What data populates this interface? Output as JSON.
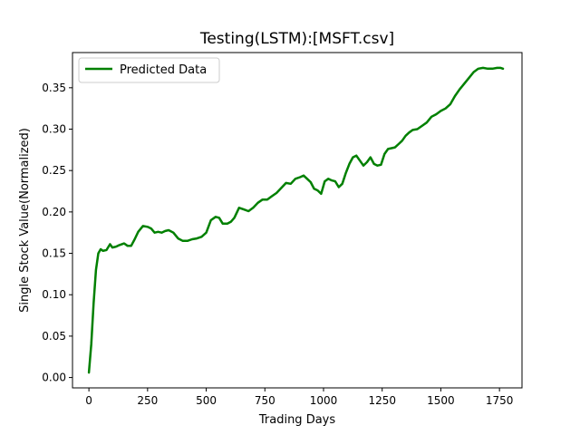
{
  "chart_data": {
    "type": "line",
    "title": "Testing(LSTM):[MSFT.csv]",
    "xlabel": "Trading Days",
    "ylabel": "Single Stock Value(Normalized)",
    "xlim": [
      -70,
      1846
    ],
    "ylim": [
      -0.0125,
      0.3925
    ],
    "xticks": [
      "0",
      "250",
      "500",
      "750",
      "1000",
      "1250",
      "1500",
      "1750"
    ],
    "xtick_values": [
      0,
      250,
      500,
      750,
      1000,
      1250,
      1500,
      1750
    ],
    "yticks": [
      "0.00",
      "0.05",
      "0.10",
      "0.15",
      "0.20",
      "0.25",
      "0.30",
      "0.35"
    ],
    "ytick_values": [
      0,
      0.05,
      0.1,
      0.15,
      0.2,
      0.25,
      0.3,
      0.35
    ],
    "grid": false,
    "legend_position": "top-left",
    "title_color": "#008000",
    "series": [
      {
        "name": "Predicted Data",
        "color": "#008000",
        "x": [
          0,
          10,
          20,
          30,
          40,
          50,
          60,
          75,
          90,
          100,
          115,
          130,
          150,
          165,
          180,
          195,
          210,
          230,
          250,
          265,
          280,
          295,
          310,
          325,
          340,
          360,
          380,
          400,
          420,
          440,
          460,
          480,
          500,
          520,
          540,
          555,
          570,
          590,
          605,
          620,
          640,
          660,
          680,
          700,
          720,
          740,
          760,
          780,
          800,
          820,
          840,
          860,
          880,
          900,
          915,
          930,
          945,
          960,
          975,
          990,
          1005,
          1020,
          1035,
          1050,
          1065,
          1080,
          1095,
          1110,
          1125,
          1140,
          1155,
          1170,
          1185,
          1200,
          1215,
          1230,
          1245,
          1260,
          1275,
          1290,
          1305,
          1320,
          1335,
          1350,
          1365,
          1380,
          1400,
          1420,
          1440,
          1460,
          1480,
          1500,
          1520,
          1540,
          1560,
          1580,
          1600,
          1620,
          1640,
          1660,
          1680,
          1700,
          1720,
          1740,
          1755,
          1765
        ],
        "values": [
          0.006,
          0.04,
          0.09,
          0.13,
          0.15,
          0.155,
          0.153,
          0.154,
          0.161,
          0.157,
          0.158,
          0.16,
          0.162,
          0.159,
          0.159,
          0.167,
          0.176,
          0.183,
          0.182,
          0.18,
          0.175,
          0.176,
          0.175,
          0.177,
          0.178,
          0.175,
          0.168,
          0.165,
          0.165,
          0.167,
          0.168,
          0.17,
          0.175,
          0.19,
          0.194,
          0.193,
          0.186,
          0.186,
          0.188,
          0.193,
          0.205,
          0.203,
          0.201,
          0.205,
          0.211,
          0.215,
          0.215,
          0.219,
          0.223,
          0.229,
          0.235,
          0.234,
          0.24,
          0.242,
          0.244,
          0.24,
          0.236,
          0.228,
          0.226,
          0.222,
          0.237,
          0.24,
          0.238,
          0.237,
          0.23,
          0.234,
          0.247,
          0.258,
          0.266,
          0.268,
          0.262,
          0.256,
          0.26,
          0.266,
          0.258,
          0.256,
          0.257,
          0.27,
          0.276,
          0.277,
          0.278,
          0.282,
          0.286,
          0.292,
          0.296,
          0.299,
          0.3,
          0.304,
          0.308,
          0.315,
          0.318,
          0.322,
          0.325,
          0.33,
          0.34,
          0.348,
          0.355,
          0.362,
          0.369,
          0.373,
          0.374,
          0.373,
          0.373,
          0.374,
          0.374,
          0.373
        ]
      }
    ]
  }
}
